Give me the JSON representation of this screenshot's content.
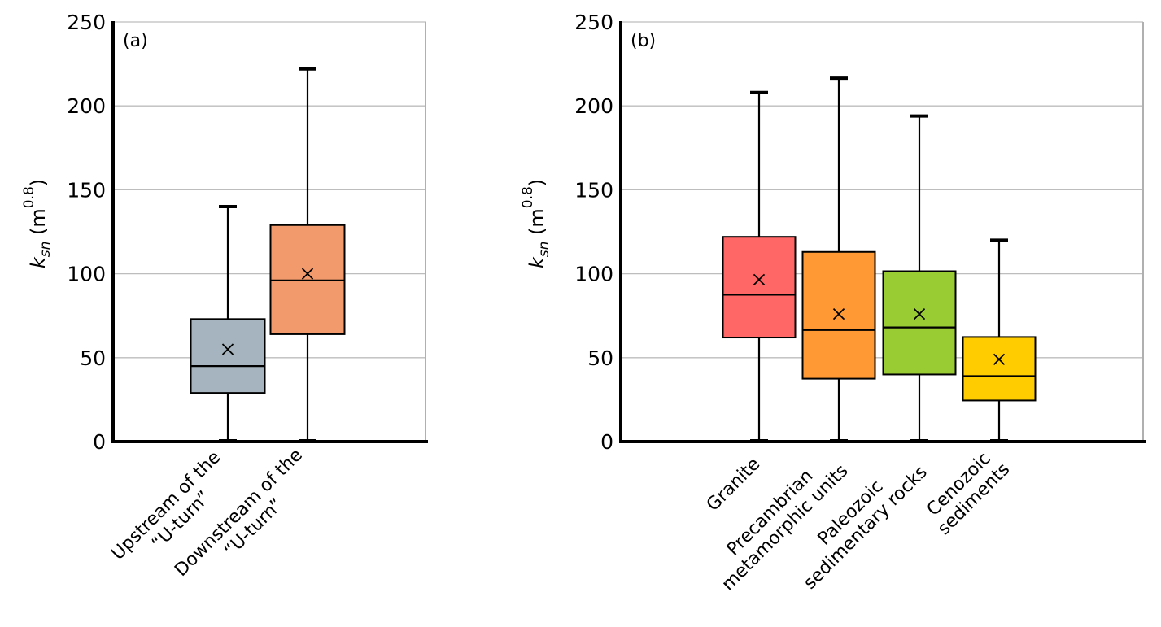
{
  "chart_data": [
    {
      "type": "box",
      "panel_label": "(a)",
      "ylabel": {
        "base": "k",
        "subscript": "sn",
        "unit_prefix": " (m",
        "superscript": "0.8",
        "unit_suffix": ")"
      },
      "xlabel": "",
      "ylim": [
        0,
        250
      ],
      "yticks": [
        0,
        50,
        100,
        150,
        200,
        250
      ],
      "grid": true,
      "legend": "none",
      "categories": [
        {
          "lines": [
            "Upstream of the",
            "“U-turn”"
          ]
        },
        {
          "lines": [
            "Downstream of the",
            "“U-turn”"
          ]
        }
      ],
      "series": [
        {
          "name": "Upstream of the “U-turn”",
          "color": "#A5B4BE",
          "min": 0,
          "q1": 29,
          "median": 45,
          "q3": 73,
          "max": 140,
          "mean": 55
        },
        {
          "name": "Downstream of the “U-turn”",
          "color": "#F29A6C",
          "min": 0,
          "q1": 64,
          "median": 96,
          "q3": 129,
          "max": 222,
          "mean": 100
        }
      ]
    },
    {
      "type": "box",
      "panel_label": "(b)",
      "ylabel": {
        "base": "k",
        "subscript": "sn",
        "unit_prefix": " (m",
        "superscript": "0.8",
        "unit_suffix": ")"
      },
      "xlabel": "",
      "ylim": [
        0,
        250
      ],
      "yticks": [
        0,
        50,
        100,
        150,
        200,
        250
      ],
      "grid": true,
      "legend": "none",
      "categories": [
        {
          "lines": [
            "Granite"
          ]
        },
        {
          "lines": [
            "Precambrian",
            "metamorphic units"
          ]
        },
        {
          "lines": [
            "Paleozoic",
            "sedimentary rocks"
          ]
        },
        {
          "lines": [
            "Cenozoic",
            "sediments"
          ]
        }
      ],
      "series": [
        {
          "name": "Granite",
          "color": "#FF6666",
          "min": 0,
          "q1": 62,
          "median": 87.5,
          "q3": 122,
          "max": 208,
          "mean": 96.5
        },
        {
          "name": "Precambrian metamorphic units",
          "color": "#FF9933",
          "min": 0,
          "q1": 37.5,
          "median": 66.5,
          "q3": 113,
          "max": 216.5,
          "mean": 76
        },
        {
          "name": "Paleozoic sedimentary rocks",
          "color": "#99CC33",
          "min": 0,
          "q1": 40,
          "median": 68,
          "q3": 101.5,
          "max": 194,
          "mean": 76
        },
        {
          "name": "Cenozoic sediments",
          "color": "#FFCC00",
          "min": 0,
          "q1": 24.5,
          "median": 39,
          "q3": 62.3,
          "max": 120,
          "mean": 49
        }
      ]
    }
  ]
}
